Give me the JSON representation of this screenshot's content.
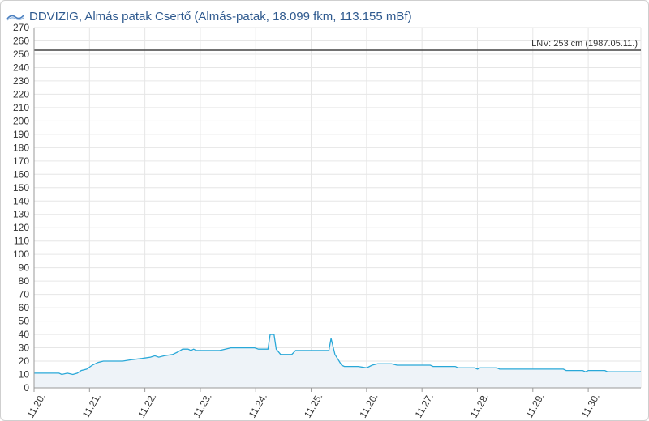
{
  "header": {
    "logo_icon": "ddvizig-logo-icon",
    "title": "DDVIZIG, Almás patak Csertő (Almás-patak, 18.099 fkm, 113.155 mBf)"
  },
  "chart_data": {
    "type": "area",
    "title": "DDVIZIG, Almás patak Csertő (Almás-patak, 18.099 fkm, 113.155 mBf)",
    "xlabel": "",
    "ylabel": "",
    "ylim": [
      0,
      270
    ],
    "ytick_step": 10,
    "x_tick_labels": [
      "11.20.",
      "11.21.",
      "11.22.",
      "11.23.",
      "11.24.",
      "11.25.",
      "11.26.",
      "11.27.",
      "11.28.",
      "11.29.",
      "11.30."
    ],
    "xlim_days": [
      0,
      10.95
    ],
    "grid": true,
    "line_color": "#29a8d8",
    "fill_color": "#eef3f8",
    "reference_line": {
      "value": 253,
      "label": "LNV: 253 cm (1987.05.11.)",
      "color": "#444444"
    },
    "series": [
      {
        "points": [
          [
            0.0,
            11
          ],
          [
            0.45,
            11
          ],
          [
            0.5,
            10
          ],
          [
            0.6,
            11
          ],
          [
            0.7,
            10
          ],
          [
            0.78,
            11
          ],
          [
            0.85,
            13
          ],
          [
            0.95,
            14
          ],
          [
            1.05,
            17
          ],
          [
            1.15,
            19
          ],
          [
            1.25,
            20
          ],
          [
            1.4,
            20
          ],
          [
            1.6,
            20
          ],
          [
            1.75,
            21
          ],
          [
            1.95,
            22
          ],
          [
            2.1,
            23
          ],
          [
            2.18,
            24
          ],
          [
            2.25,
            23
          ],
          [
            2.35,
            24
          ],
          [
            2.5,
            25
          ],
          [
            2.6,
            27
          ],
          [
            2.68,
            29
          ],
          [
            2.78,
            29
          ],
          [
            2.83,
            28
          ],
          [
            2.88,
            29
          ],
          [
            2.93,
            28
          ],
          [
            3.0,
            28
          ],
          [
            3.2,
            28
          ],
          [
            3.35,
            28
          ],
          [
            3.45,
            29
          ],
          [
            3.55,
            30
          ],
          [
            3.8,
            30
          ],
          [
            3.98,
            30
          ],
          [
            4.05,
            29
          ],
          [
            4.22,
            29
          ],
          [
            4.26,
            40
          ],
          [
            4.33,
            40
          ],
          [
            4.37,
            29
          ],
          [
            4.45,
            25
          ],
          [
            4.65,
            25
          ],
          [
            4.72,
            28
          ],
          [
            5.0,
            28
          ],
          [
            5.32,
            28
          ],
          [
            5.36,
            37
          ],
          [
            5.43,
            25
          ],
          [
            5.55,
            17
          ],
          [
            5.6,
            16
          ],
          [
            5.85,
            16
          ],
          [
            6.0,
            15
          ],
          [
            6.1,
            17
          ],
          [
            6.2,
            18
          ],
          [
            6.45,
            18
          ],
          [
            6.55,
            17
          ],
          [
            7.0,
            17
          ],
          [
            7.15,
            17
          ],
          [
            7.2,
            16
          ],
          [
            7.6,
            16
          ],
          [
            7.65,
            15
          ],
          [
            7.95,
            15
          ],
          [
            8.0,
            14
          ],
          [
            8.05,
            15
          ],
          [
            8.35,
            15
          ],
          [
            8.4,
            14
          ],
          [
            9.55,
            14
          ],
          [
            9.6,
            13
          ],
          [
            9.9,
            13
          ],
          [
            9.95,
            12
          ],
          [
            10.0,
            13
          ],
          [
            10.3,
            13
          ],
          [
            10.35,
            12
          ],
          [
            10.95,
            12
          ]
        ]
      }
    ]
  }
}
